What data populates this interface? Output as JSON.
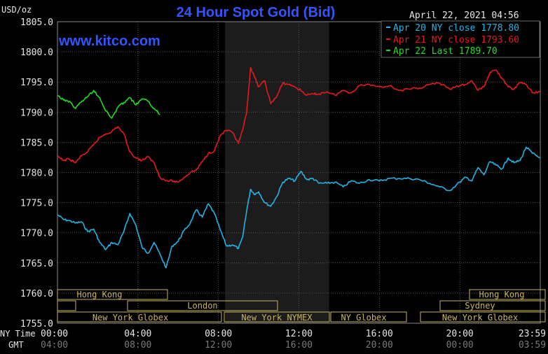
{
  "header": {
    "title": "24 Hour Spot Gold (Bid)",
    "y_unit": "USD/oz",
    "timestamp": "April 22, 2021 04:56",
    "watermark": "www.kitco.com"
  },
  "axis_row_labels": {
    "ny": "NY Time",
    "gmt": "GMT"
  },
  "sessions": {
    "hong_kong_left": "Hong Kong",
    "london": "London",
    "ny_globex_left": "New York Globex",
    "ny_nymex": "New York NYMEX",
    "ny_globex_mid": "NY Globex",
    "hong_kong_right": "Hong Kong",
    "sydney": "Sydney",
    "ny_globex_right": "New York Globex"
  },
  "colors": {
    "background": "#000000",
    "grid": "#5a5a5a",
    "frame": "#8a8a8a",
    "title": "#3355ff",
    "text": "#e6e6e6",
    "session_box": "#c8b464",
    "nymex_shade": "#1c1c1c",
    "apr20": "#22b4e6",
    "apr21": "#e61a1a",
    "apr22": "#22dd22"
  },
  "chart_data": {
    "type": "line",
    "title": "24 Hour Spot Gold (Bid)",
    "ylabel": "USD/oz",
    "ylim": [
      1755,
      1805
    ],
    "yticks": [
      "1805.0",
      "1800.0",
      "1795.0",
      "1790.0",
      "1785.0",
      "1780.0",
      "1775.0",
      "1770.0",
      "1765.0",
      "1760.0",
      "1755.0"
    ],
    "xlim": [
      0,
      24
    ],
    "xticks_ny": [
      "00:00",
      "04:00",
      "08:00",
      "12:00",
      "16:00",
      "20:00",
      "23:59"
    ],
    "xticks_gmt": [
      "04:00",
      "08:00",
      "12:00",
      "16:00",
      "20:00",
      "00:00",
      "03:59"
    ],
    "grid": true,
    "legend": "top-right",
    "legend_entries": [
      {
        "label": "Apr 20 NY close 1778.80",
        "series": 0
      },
      {
        "label": "Apr 21 NY close 1793.60",
        "series": 1
      },
      {
        "label": "Apr 22 Last 1789.70",
        "series": 2
      }
    ],
    "series": [
      {
        "x": [
          0,
          0.3,
          0.6,
          0.9,
          1.2,
          1.5,
          1.8,
          2.1,
          2.4,
          2.7,
          3.0,
          3.3,
          3.6,
          3.9,
          4.2,
          4.5,
          4.8,
          5.1,
          5.4,
          5.7,
          6.0,
          6.3,
          6.6,
          6.9,
          7.2,
          7.5,
          7.8,
          8.1,
          8.4,
          8.7,
          9.0,
          9.2,
          9.4,
          9.6,
          9.8,
          10.0,
          10.3,
          10.6,
          10.9,
          11.2,
          11.5,
          11.8,
          12.1,
          12.4,
          12.7,
          13.0,
          13.4,
          13.8,
          14.2,
          14.6,
          15.0,
          15.5,
          16.0,
          16.5,
          17.0,
          17.5,
          18.0,
          18.5,
          19.0,
          19.5,
          20.0,
          20.3,
          20.6,
          20.9,
          21.2,
          21.5,
          21.8,
          22.1,
          22.4,
          22.7,
          23.0,
          23.3,
          23.6,
          23.99
        ],
        "y": [
          1773.0,
          1772.2,
          1772.0,
          1771.6,
          1771.8,
          1770.2,
          1770.6,
          1768.4,
          1767.2,
          1768.4,
          1768.0,
          1770.2,
          1773.2,
          1771.2,
          1767.6,
          1766.6,
          1768.4,
          1766.4,
          1764.2,
          1767.8,
          1768.6,
          1770.4,
          1771.6,
          1773.8,
          1772.6,
          1774.8,
          1773.2,
          1770.4,
          1767.8,
          1768.0,
          1767.4,
          1769.2,
          1773.6,
          1777.2,
          1776.4,
          1776.8,
          1775.0,
          1774.4,
          1776.0,
          1778.4,
          1779.0,
          1778.6,
          1780.2,
          1778.8,
          1779.0,
          1778.2,
          1778.2,
          1778.4,
          1777.6,
          1778.6,
          1778.2,
          1778.8,
          1778.6,
          1779.0,
          1779.0,
          1779.0,
          1778.8,
          1778.2,
          1777.6,
          1777.0,
          1778.4,
          1779.2,
          1778.6,
          1780.8,
          1779.6,
          1781.8,
          1781.2,
          1780.6,
          1782.4,
          1781.6,
          1782.0,
          1784.2,
          1783.2,
          1782.4
        ]
      },
      {
        "x": [
          0,
          0.3,
          0.6,
          0.9,
          1.2,
          1.5,
          1.8,
          2.1,
          2.4,
          2.7,
          3.0,
          3.3,
          3.6,
          3.9,
          4.2,
          4.5,
          4.8,
          5.1,
          5.4,
          5.7,
          6.0,
          6.3,
          6.6,
          6.9,
          7.2,
          7.5,
          7.8,
          8.1,
          8.4,
          8.7,
          9.0,
          9.2,
          9.4,
          9.6,
          9.8,
          10.0,
          10.3,
          10.6,
          10.9,
          11.2,
          11.5,
          11.8,
          12.1,
          12.4,
          12.7,
          13.0,
          13.4,
          13.8,
          14.2,
          14.6,
          15.0,
          15.5,
          16.0,
          16.5,
          17.0,
          17.5,
          18.0,
          18.5,
          19.0,
          19.5,
          20.0,
          20.3,
          20.6,
          20.9,
          21.2,
          21.5,
          21.8,
          22.1,
          22.4,
          22.7,
          23.0,
          23.3,
          23.6,
          23.99
        ],
        "y": [
          1782.6,
          1782.0,
          1782.2,
          1781.6,
          1782.8,
          1783.4,
          1784.6,
          1785.8,
          1786.4,
          1786.8,
          1787.6,
          1786.4,
          1783.4,
          1782.4,
          1782.0,
          1782.6,
          1781.6,
          1779.2,
          1778.6,
          1778.6,
          1778.4,
          1779.2,
          1780.0,
          1780.4,
          1781.8,
          1783.2,
          1783.6,
          1786.2,
          1787.0,
          1786.6,
          1784.8,
          1787.0,
          1789.8,
          1797.4,
          1795.8,
          1794.2,
          1795.2,
          1791.4,
          1792.6,
          1794.8,
          1794.6,
          1794.2,
          1793.6,
          1792.8,
          1793.0,
          1793.0,
          1793.4,
          1792.8,
          1793.6,
          1793.2,
          1794.4,
          1794.6,
          1794.2,
          1794.4,
          1793.6,
          1793.8,
          1794.0,
          1794.6,
          1794.8,
          1793.8,
          1794.4,
          1794.6,
          1795.2,
          1793.6,
          1794.2,
          1796.6,
          1797.0,
          1795.6,
          1794.2,
          1793.8,
          1795.0,
          1794.6,
          1793.2,
          1793.4
        ]
      },
      {
        "x": [
          0,
          0.3,
          0.6,
          0.9,
          1.2,
          1.5,
          1.8,
          2.1,
          2.4,
          2.7,
          3.0,
          3.3,
          3.6,
          3.9,
          4.2,
          4.5,
          4.8,
          5.1
        ],
        "y": [
          1792.8,
          1792.0,
          1791.8,
          1790.6,
          1791.8,
          1792.6,
          1793.6,
          1792.4,
          1790.2,
          1789.0,
          1790.8,
          1791.6,
          1792.4,
          1791.2,
          1792.2,
          1791.8,
          1790.6,
          1789.6
        ]
      }
    ]
  }
}
